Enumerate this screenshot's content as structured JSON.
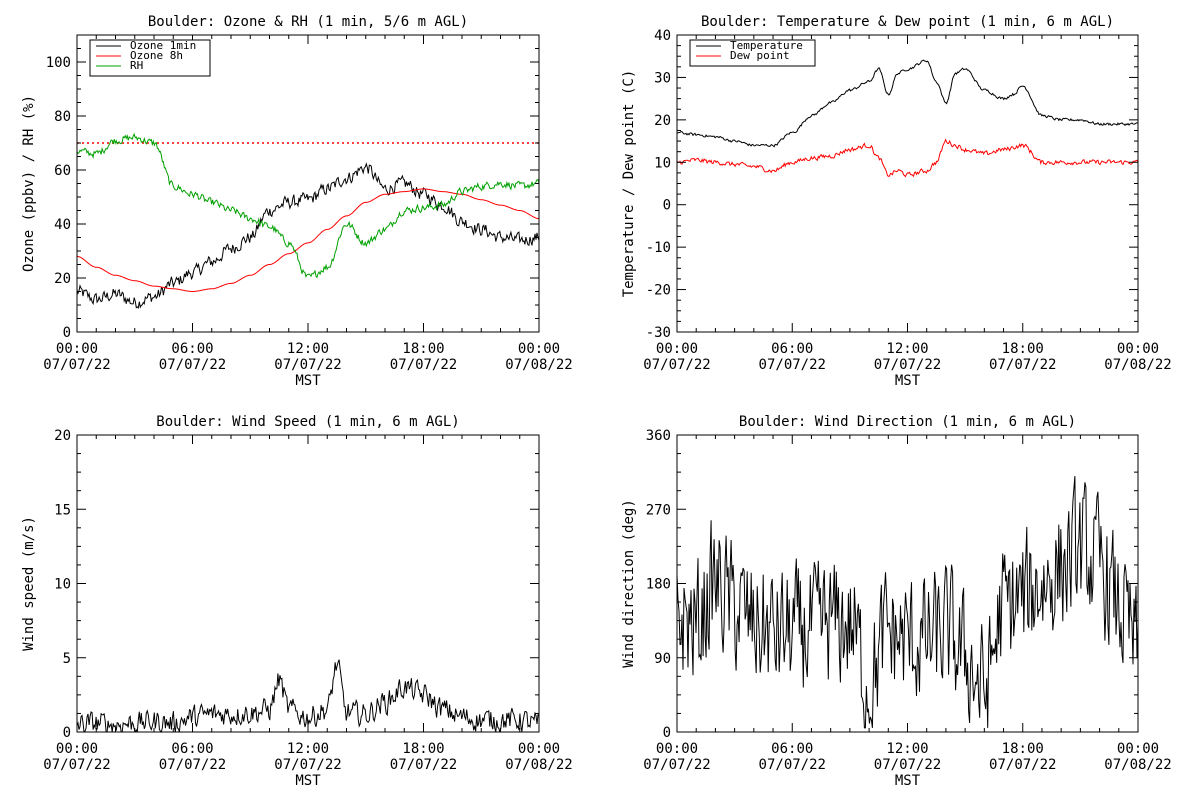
{
  "chart_data": [
    {
      "id": "ozone",
      "type": "line",
      "title": "Boulder: Ozone & RH (1 min, 5/6 m AGL)",
      "ylabel": "Ozone (ppbv) / RH (%)",
      "xlabel": "MST",
      "ylim": [
        0,
        110
      ],
      "yticks": [
        0,
        20,
        40,
        60,
        80,
        100
      ],
      "xlim_hours": [
        0,
        24
      ],
      "xticks": [
        {
          "time": "00:00",
          "date": "07/07/22"
        },
        {
          "time": "06:00",
          "date": "07/07/22"
        },
        {
          "time": "12:00",
          "date": "07/07/22"
        },
        {
          "time": "18:00",
          "date": "07/07/22"
        },
        {
          "time": "00:00",
          "date": "07/08/22"
        }
      ],
      "legend": {
        "placement": "top-left",
        "entries": [
          "Ozone 1min",
          "Ozone 8h",
          "RH"
        ]
      },
      "reference_line": {
        "y": 70,
        "color": "#ff0000",
        "style": "dotted"
      },
      "series": [
        {
          "name": "Ozone 1min",
          "color": "#000000",
          "noise": 2.2,
          "x": [
            0,
            1,
            2,
            3,
            4,
            5,
            6,
            7,
            8,
            9,
            10,
            11,
            12,
            13,
            14,
            15,
            16,
            17,
            18,
            19,
            20,
            21,
            22,
            23,
            24
          ],
          "y": [
            15,
            12,
            14,
            11,
            13,
            18,
            22,
            26,
            31,
            35,
            45,
            48,
            49,
            53,
            57,
            61,
            53,
            55,
            51,
            47,
            41,
            38,
            35,
            34,
            35
          ]
        },
        {
          "name": "Ozone 8h",
          "color": "#ff0000",
          "noise": 0,
          "x": [
            0,
            1,
            2,
            3,
            4,
            5,
            6,
            7,
            8,
            9,
            10,
            11,
            12,
            13,
            14,
            15,
            16,
            17,
            18,
            19,
            20,
            21,
            22,
            23,
            24
          ],
          "y": [
            28,
            24,
            21,
            19,
            17,
            16,
            15,
            16,
            18,
            21,
            25,
            29,
            33,
            38,
            43,
            48,
            51,
            52,
            53,
            52,
            51,
            49,
            47,
            45,
            42
          ]
        },
        {
          "name": "RH",
          "color": "#00a000",
          "noise": 1.3,
          "x": [
            0,
            1,
            2,
            3,
            4,
            5,
            6,
            7,
            8,
            9,
            10,
            11,
            12,
            13,
            14,
            15,
            16,
            17,
            18,
            19,
            20,
            21,
            22,
            23,
            24
          ],
          "y": [
            67,
            66,
            71,
            72,
            70,
            54,
            51,
            48,
            45,
            42,
            39,
            33,
            20,
            24,
            40,
            33,
            38,
            45,
            46,
            47,
            52,
            54,
            55,
            54,
            55
          ]
        }
      ]
    },
    {
      "id": "temperature",
      "type": "line",
      "title": "Boulder: Temperature & Dew point (1 min, 6 m AGL)",
      "ylabel": "Temperature / Dew point (C)",
      "xlabel": "MST",
      "ylim": [
        -30,
        40
      ],
      "yticks": [
        -30,
        -20,
        -10,
        0,
        10,
        20,
        30,
        40
      ],
      "xlim_hours": [
        0,
        24
      ],
      "xticks": [
        {
          "time": "00:00",
          "date": "07/07/22"
        },
        {
          "time": "06:00",
          "date": "07/07/22"
        },
        {
          "time": "12:00",
          "date": "07/07/22"
        },
        {
          "time": "18:00",
          "date": "07/07/22"
        },
        {
          "time": "00:00",
          "date": "07/08/22"
        }
      ],
      "legend": {
        "placement": "top-left",
        "entries": [
          "Temperature",
          "Dew point"
        ]
      },
      "series": [
        {
          "name": "Temperature",
          "color": "#000000",
          "noise": 0.3,
          "x": [
            0,
            1,
            2,
            3,
            4,
            5,
            6,
            7,
            8,
            9,
            10,
            10.5,
            11,
            11.5,
            12,
            13,
            13.5,
            14,
            14.5,
            15,
            16,
            17,
            17.5,
            18,
            19,
            20,
            21,
            22,
            23,
            24
          ],
          "y": [
            17,
            16.5,
            16,
            15,
            14,
            14,
            17,
            21,
            24,
            27,
            29,
            32,
            26,
            31,
            32,
            34,
            29,
            24,
            31,
            32,
            27,
            25,
            26,
            28,
            21,
            20,
            20,
            19,
            19,
            19
          ]
        },
        {
          "name": "Dew point",
          "color": "#ff0000",
          "noise": 0.5,
          "x": [
            0,
            1,
            2,
            3,
            4,
            5,
            6,
            7,
            8,
            9,
            10,
            10.5,
            11,
            11.5,
            12,
            13,
            13.5,
            14,
            14.5,
            15,
            16,
            17,
            18,
            19,
            20,
            21,
            22,
            23,
            24
          ],
          "y": [
            10,
            10.5,
            10,
            9.5,
            9,
            8,
            10,
            11,
            11.5,
            13,
            14,
            11,
            7,
            8,
            7,
            8,
            10,
            15,
            14,
            13,
            12,
            13,
            14,
            10,
            10,
            10,
            10,
            10,
            10
          ]
        }
      ]
    },
    {
      "id": "windspeed",
      "type": "line",
      "title": "Boulder: Wind Speed (1 min, 6 m AGL)",
      "ylabel": "Wind speed (m/s)",
      "xlabel": "MST",
      "ylim": [
        0,
        20
      ],
      "yticks": [
        0,
        5,
        10,
        15,
        20
      ],
      "xlim_hours": [
        0,
        24
      ],
      "xticks": [
        {
          "time": "00:00",
          "date": "07/07/22"
        },
        {
          "time": "06:00",
          "date": "07/07/22"
        },
        {
          "time": "12:00",
          "date": "07/07/22"
        },
        {
          "time": "18:00",
          "date": "07/07/22"
        },
        {
          "time": "00:00",
          "date": "07/08/22"
        }
      ],
      "series": [
        {
          "name": "",
          "color": "#000000",
          "noise": 0.7,
          "clip_min": 0,
          "x": [
            0,
            1,
            2,
            3,
            4,
            5,
            6,
            7,
            8,
            9,
            10,
            10.5,
            11,
            12,
            13,
            13.5,
            14,
            15,
            16,
            17,
            18,
            19,
            20,
            21,
            22,
            23,
            24
          ],
          "y": [
            0.5,
            0.6,
            0.5,
            0.6,
            0.7,
            0.6,
            1.0,
            1.2,
            1.2,
            1.3,
            1.5,
            3.5,
            1.5,
            1.0,
            1.5,
            4.5,
            1.3,
            1.2,
            2.0,
            3.0,
            2.5,
            1.5,
            1.0,
            0.8,
            0.8,
            0.8,
            0.5
          ]
        }
      ]
    },
    {
      "id": "winddir",
      "type": "line",
      "title": "Boulder: Wind Direction (1 min, 6 m AGL)",
      "ylabel": "Wind direction (deg)",
      "xlabel": "MST",
      "ylim": [
        0,
        360
      ],
      "yticks": [
        0,
        90,
        180,
        270,
        360
      ],
      "xlim_hours": [
        0,
        24
      ],
      "xticks": [
        {
          "time": "00:00",
          "date": "07/07/22"
        },
        {
          "time": "06:00",
          "date": "07/07/22"
        },
        {
          "time": "12:00",
          "date": "07/07/22"
        },
        {
          "time": "18:00",
          "date": "07/07/22"
        },
        {
          "time": "00:00",
          "date": "07/08/22"
        }
      ],
      "series": [
        {
          "name": "",
          "color": "#000000",
          "noise": 70,
          "clip_min": 5,
          "clip_max": 360,
          "x": [
            0,
            1,
            2,
            3,
            4,
            5,
            6,
            7,
            8,
            9,
            10,
            11,
            12,
            13,
            14,
            15,
            16,
            17,
            18,
            19,
            20,
            21,
            22,
            23,
            24
          ],
          "y": [
            140,
            130,
            180,
            150,
            130,
            120,
            120,
            120,
            130,
            130,
            60,
            120,
            110,
            110,
            120,
            90,
            50,
            150,
            160,
            180,
            200,
            220,
            200,
            150,
            100
          ]
        }
      ]
    }
  ]
}
